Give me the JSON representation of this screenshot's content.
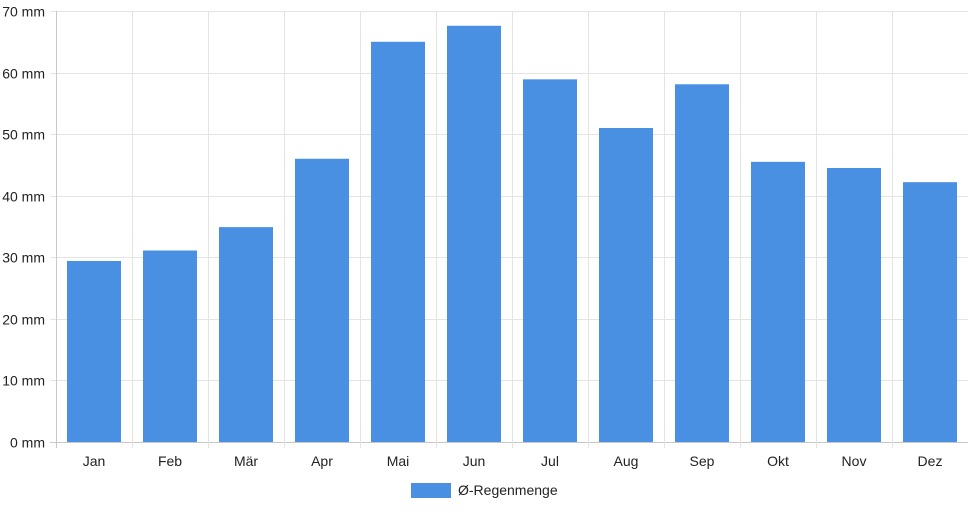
{
  "chart_data": {
    "type": "bar",
    "categories": [
      "Jan",
      "Feb",
      "Mär",
      "Apr",
      "Mai",
      "Jun",
      "Jul",
      "Aug",
      "Sep",
      "Okt",
      "Nov",
      "Dez"
    ],
    "series": [
      {
        "name": "Ø-Regenmenge",
        "values": [
          29.4,
          31.1,
          34.9,
          46.0,
          65.0,
          67.6,
          58.9,
          51.0,
          58.1,
          45.5,
          44.5,
          42.2
        ],
        "color": "#4a90e2"
      }
    ],
    "y_ticks": [
      "0 mm",
      "10 mm",
      "20 mm",
      "30 mm",
      "40 mm",
      "50 mm",
      "60 mm",
      "70 mm"
    ],
    "ylim": [
      0,
      70
    ],
    "grid": true,
    "legend_position": "bottom"
  }
}
